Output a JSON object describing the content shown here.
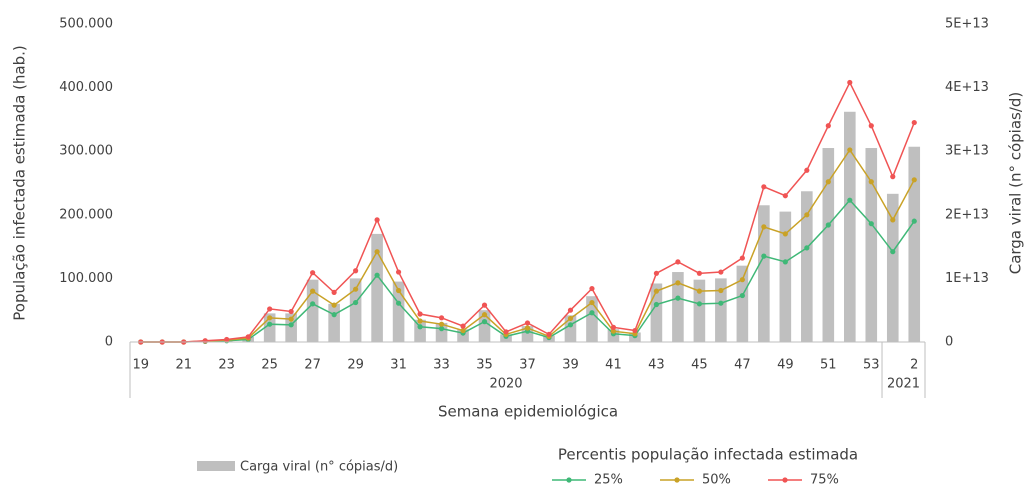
{
  "chart_data": {
    "type": "combo",
    "ylabel": "População infectada estimada (hab.)",
    "y2label": "Carga viral (n° cópias/d)",
    "xlabel": "Semana epidemiológica",
    "legend_title": "Percentis população infectada estimada",
    "categories": [
      "19",
      null,
      "21",
      null,
      "23",
      null,
      "25",
      null,
      "27",
      null,
      "29",
      null,
      "31",
      null,
      "33",
      null,
      "35",
      null,
      "37",
      null,
      "39",
      null,
      "41",
      null,
      "43",
      null,
      "45",
      null,
      "47",
      null,
      "49",
      null,
      "51",
      null,
      "53",
      null,
      "2"
    ],
    "x_group": [
      "2020",
      "2020",
      "2020",
      "2020",
      "2020",
      "2020",
      "2020",
      "2020",
      "2020",
      "2020",
      "2020",
      "2020",
      "2020",
      "2020",
      "2020",
      "2020",
      "2020",
      "2020",
      "2020",
      "2020",
      "2020",
      "2020",
      "2020",
      "2020",
      "2020",
      "2020",
      "2020",
      "2020",
      "2020",
      "2020",
      "2020",
      "2020",
      "2020",
      "2020",
      "2020",
      "2021",
      "2021"
    ],
    "ylim": [
      0,
      500000
    ],
    "yticks": [
      0,
      {
        "value": 100000,
        "label": "100.000"
      },
      {
        "value": 200000,
        "label": "200.000"
      },
      {
        "value": 300000,
        "label": "300.000"
      },
      {
        "value": 400000,
        "label": "400.000"
      },
      {
        "value": 500000,
        "label": "500.000"
      }
    ],
    "y2lim": [
      0,
      50000000000000
    ],
    "y2ticks": [
      0,
      {
        "value": 10000000000000,
        "label": "1E+13"
      },
      {
        "value": 20000000000000,
        "label": "2E+13"
      },
      {
        "value": 30000000000000,
        "label": "3E+13"
      },
      {
        "value": 40000000000000,
        "label": "4E+13"
      },
      {
        "value": 50000000000000,
        "label": "5E+13"
      }
    ],
    "grid": false,
    "series": [
      {
        "name": "Carga viral (n° cópias/d)",
        "type": "bar",
        "axis": "y2",
        "color": "#bfbfbf",
        "values": [
          0,
          0,
          0,
          200000000000,
          300000000000,
          800000000000,
          4500000000000,
          4500000000000,
          9800000000000,
          6000000000000,
          10000000000000,
          17000000000000,
          9500000000000,
          3500000000000,
          3000000000000,
          2000000000000,
          5000000000000,
          1200000000000,
          2500000000000,
          1000000000000,
          4200000000000,
          7200000000000,
          2000000000000,
          1500000000000,
          9200000000000,
          11000000000000,
          9800000000000,
          10000000000000,
          12000000000000,
          21500000000000,
          20500000000000,
          23700000000000,
          30500000000000,
          36200000000000,
          30500000000000,
          23300000000000,
          30700000000000
        ]
      },
      {
        "name": "25%",
        "type": "line",
        "color": "#3fb877",
        "values": [
          0,
          0,
          0,
          1000,
          2000,
          4000,
          28000,
          27000,
          60000,
          43000,
          62000,
          105000,
          61000,
          24000,
          21000,
          14000,
          32000,
          9000,
          17000,
          7000,
          27000,
          46000,
          13000,
          10000,
          59000,
          69000,
          60000,
          61000,
          73000,
          135000,
          126000,
          148000,
          184000,
          223000,
          186000,
          142000,
          190000
        ]
      },
      {
        "name": "50%",
        "type": "line",
        "color": "#c9a227",
        "values": [
          0,
          0,
          0,
          1500,
          3000,
          6000,
          38000,
          36000,
          80000,
          58000,
          83000,
          142000,
          81000,
          33000,
          28000,
          18000,
          43000,
          12000,
          22000,
          9000,
          37000,
          62000,
          17000,
          13000,
          80000,
          93000,
          80000,
          81000,
          98000,
          181000,
          170000,
          200000,
          252000,
          302000,
          252000,
          192000,
          255000
        ]
      },
      {
        "name": "75%",
        "type": "line",
        "color": "#f05454",
        "values": [
          0,
          0,
          0,
          2000,
          4000,
          8000,
          52000,
          48000,
          109000,
          78000,
          112000,
          192000,
          110000,
          44000,
          38000,
          25000,
          58000,
          16000,
          30000,
          12000,
          50000,
          84000,
          23000,
          18000,
          108000,
          126000,
          108000,
          110000,
          132000,
          244000,
          230000,
          270000,
          340000,
          408000,
          340000,
          260000,
          345000
        ]
      }
    ]
  }
}
